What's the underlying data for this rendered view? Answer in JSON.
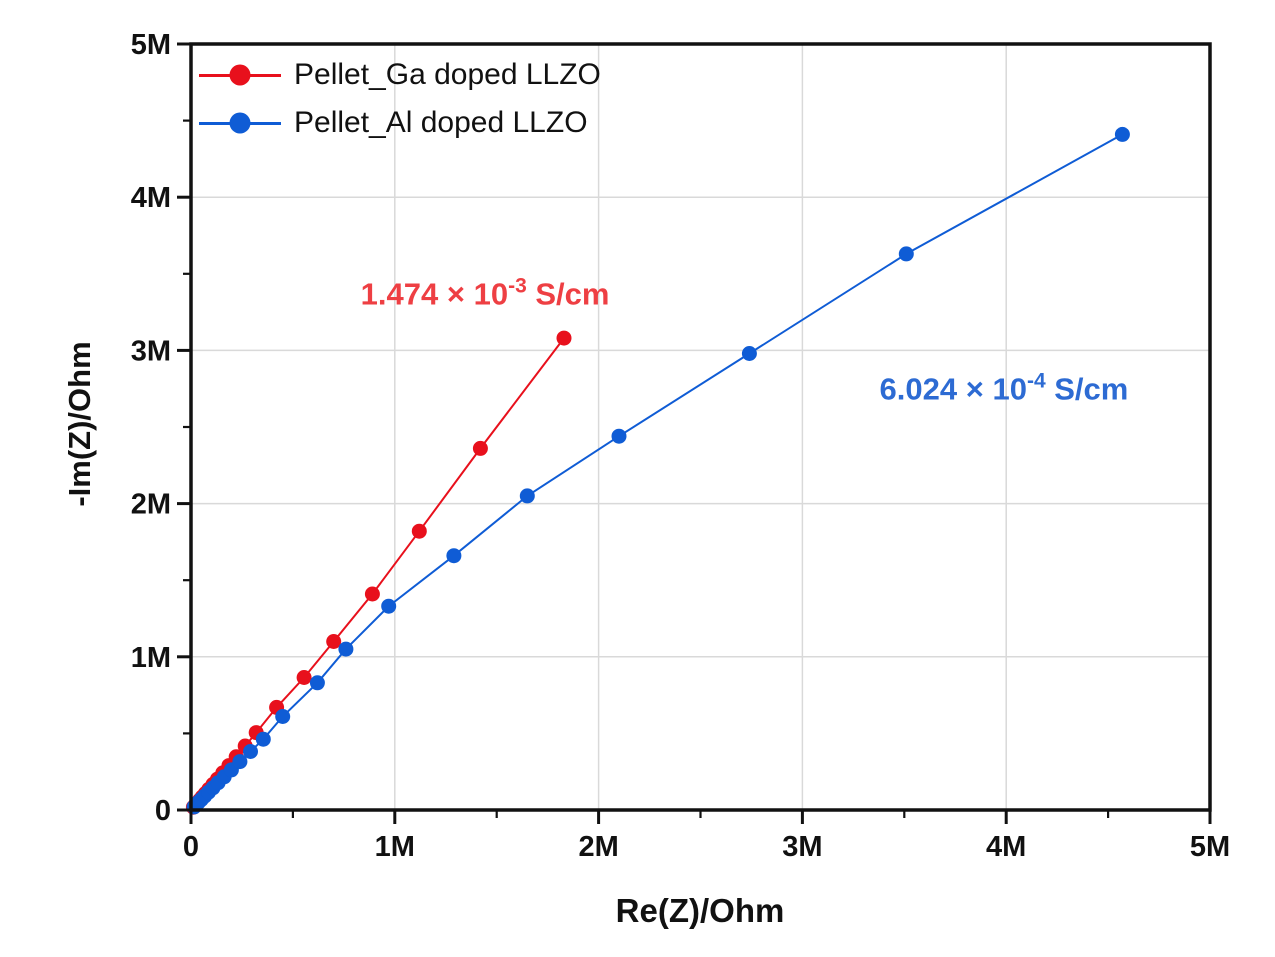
{
  "chart_data": {
    "type": "scatter",
    "title": "",
    "xlabel": "Re(Z)/Ohm",
    "ylabel": "-Im(Z)/Ohm",
    "units": "MOhm",
    "xlim": [
      0,
      5
    ],
    "ylim": [
      0,
      5
    ],
    "x_ticks": [
      0,
      1,
      2,
      3,
      4,
      5
    ],
    "x_tick_labels": [
      "0",
      "1M",
      "2M",
      "3M",
      "4M",
      "5M"
    ],
    "y_ticks": [
      0,
      1,
      2,
      3,
      4,
      5
    ],
    "y_tick_labels": [
      "0",
      "1M",
      "2M",
      "3M",
      "4M",
      "5M"
    ],
    "minor_tick_interval": 0.5,
    "grid": {
      "major": true,
      "minor": false,
      "color": "#d9d9d9"
    },
    "legend_position": "top-left",
    "axis_color": "#111111",
    "series": [
      {
        "name": "Pellet_Ga doped LLZO",
        "color": "#e8101c",
        "marker": "circle",
        "points": [
          [
            0.012,
            0.018
          ],
          [
            0.02,
            0.031
          ],
          [
            0.03,
            0.046
          ],
          [
            0.042,
            0.064
          ],
          [
            0.055,
            0.085
          ],
          [
            0.07,
            0.108
          ],
          [
            0.088,
            0.136
          ],
          [
            0.108,
            0.167
          ],
          [
            0.13,
            0.202
          ],
          [
            0.156,
            0.242
          ],
          [
            0.186,
            0.29
          ],
          [
            0.222,
            0.347
          ],
          [
            0.266,
            0.418
          ],
          [
            0.32,
            0.505
          ],
          [
            0.42,
            0.67
          ],
          [
            0.555,
            0.865
          ],
          [
            0.7,
            1.1
          ],
          [
            0.89,
            1.41
          ],
          [
            1.12,
            1.82
          ],
          [
            1.42,
            2.36
          ],
          [
            1.83,
            3.08
          ]
        ]
      },
      {
        "name": "Pellet_Al doped LLZO",
        "color": "#0f5cd5",
        "marker": "circle",
        "points": [
          [
            0.015,
            0.02
          ],
          [
            0.025,
            0.034
          ],
          [
            0.037,
            0.05
          ],
          [
            0.051,
            0.069
          ],
          [
            0.067,
            0.091
          ],
          [
            0.086,
            0.116
          ],
          [
            0.108,
            0.145
          ],
          [
            0.133,
            0.178
          ],
          [
            0.163,
            0.217
          ],
          [
            0.198,
            0.262
          ],
          [
            0.24,
            0.316
          ],
          [
            0.292,
            0.382
          ],
          [
            0.355,
            0.462
          ],
          [
            0.45,
            0.61
          ],
          [
            0.62,
            0.83
          ],
          [
            0.76,
            1.05
          ],
          [
            0.97,
            1.33
          ],
          [
            1.29,
            1.66
          ],
          [
            1.65,
            2.05
          ],
          [
            2.1,
            2.44
          ],
          [
            2.74,
            2.98
          ],
          [
            3.51,
            3.63
          ],
          [
            4.57,
            4.41
          ]
        ]
      }
    ],
    "annotations": [
      {
        "base": "1.474 × 10",
        "sup": "-3",
        "tail": " S/cm",
        "color": "#ee3f43",
        "x": 1.443,
        "y": 3.368
      },
      {
        "base": "6.024 × 10",
        "sup": "-4",
        "tail": " S/cm",
        "color": "#2d6bd3",
        "x": 3.989,
        "y": 2.748
      }
    ]
  }
}
